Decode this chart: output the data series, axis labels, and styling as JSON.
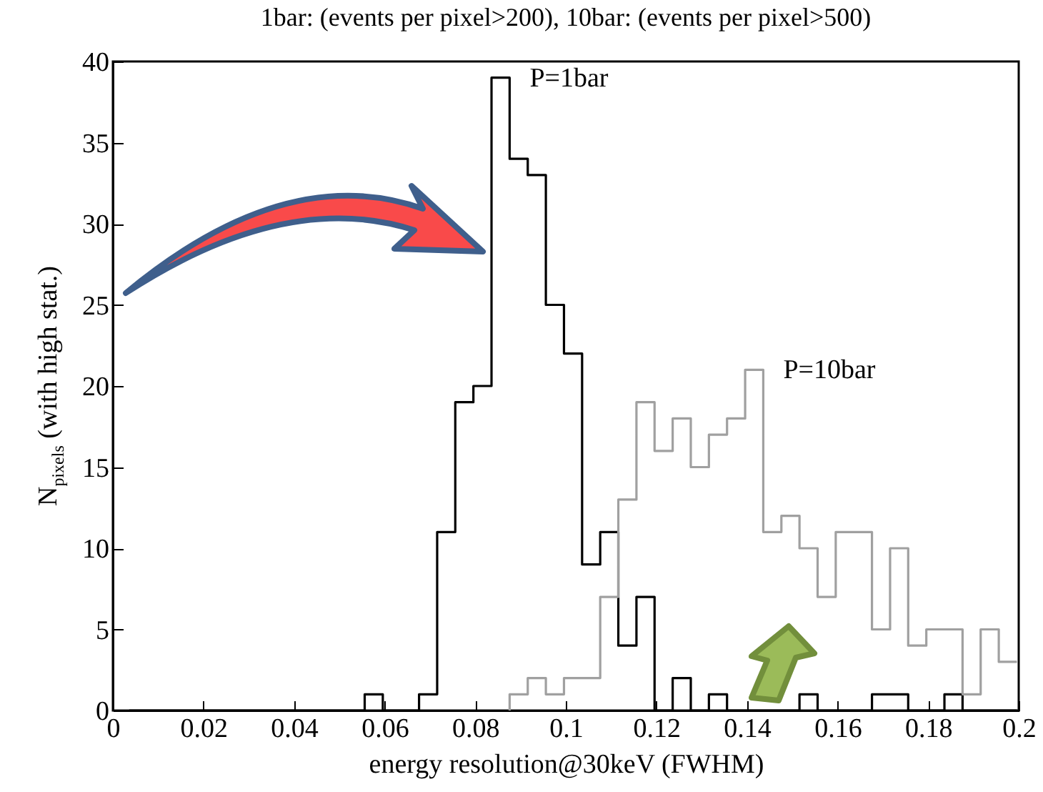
{
  "chart_data": {
    "type": "histogram",
    "title": "1bar: (events per pixel>200), 10bar: (events per pixel>500)",
    "xlabel": "energy resolution@30keV (FWHM)",
    "ylabel": "N$_{pixels}$ (with high stat.)",
    "bins": [
      0.0036,
      0.0076,
      0.0116,
      0.0156,
      0.0196,
      0.0236,
      0.0276,
      0.0316,
      0.0356,
      0.0396,
      0.0436,
      0.0476,
      0.0516,
      0.0556,
      0.0596,
      0.0636,
      0.0676,
      0.0716,
      0.0756,
      0.0796,
      0.0836,
      0.0876,
      0.0916,
      0.0956,
      0.0996,
      0.1036,
      0.1076,
      0.1116,
      0.1156,
      0.1196,
      0.1236,
      0.1276,
      0.1316,
      0.1356,
      0.1396,
      0.1436,
      0.1476,
      0.1516,
      0.1556,
      0.1596,
      0.1636,
      0.1676,
      0.1716,
      0.1756,
      0.1796,
      0.1836,
      0.1876,
      0.1916,
      0.1956,
      0.1996
    ],
    "series": [
      {
        "name": "P=1bar",
        "color": "#000000",
        "values": [
          0,
          0,
          0,
          0,
          0,
          0,
          0,
          0,
          0,
          0,
          0,
          0,
          0,
          1,
          0,
          0,
          1,
          11,
          19,
          20,
          39,
          34,
          33,
          25,
          22,
          9,
          11,
          4,
          7,
          0,
          2,
          0,
          1,
          0,
          0,
          0,
          0,
          1,
          0,
          0,
          0,
          1,
          1,
          0,
          0,
          1,
          0,
          0,
          0
        ]
      },
      {
        "name": "P=10bar",
        "color": "#a0a0a0",
        "bins": [
          0.0876,
          0.0916,
          0.0956,
          0.0996,
          0.1036,
          0.1076,
          0.1116,
          0.1156,
          0.1196,
          0.1236,
          0.1276,
          0.1316,
          0.1356,
          0.1396,
          0.1436,
          0.1476,
          0.1516,
          0.1556,
          0.1596,
          0.1636,
          0.1676,
          0.1716,
          0.1756,
          0.1796,
          0.1836,
          0.1876,
          0.1916,
          0.1956,
          0.1996
        ],
        "values": [
          1,
          2,
          1,
          2,
          2,
          7,
          13,
          19,
          16,
          18,
          15,
          17,
          18,
          21,
          11,
          12,
          10,
          7,
          11,
          11,
          5,
          10,
          4,
          5,
          5,
          1,
          5,
          3
        ]
      }
    ],
    "xlim": [
      0,
      0.2
    ],
    "xticks": [
      0,
      0.02,
      0.04,
      0.06,
      0.08,
      0.1,
      0.12,
      0.14,
      0.16,
      0.18,
      0.2
    ],
    "ylim": [
      0,
      40
    ],
    "yticks": [
      0,
      5,
      10,
      15,
      20,
      25,
      30,
      35,
      40
    ]
  }
}
